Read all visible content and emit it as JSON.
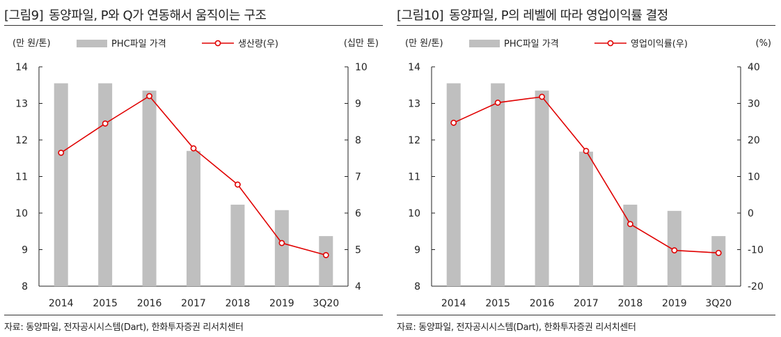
{
  "chart_data": [
    {
      "type": "bar+line",
      "figure_label": "[그림9]",
      "title": "동양파일, P와 Q가 연동해서 움직이는 구조",
      "left_unit": "(만 원/톤)",
      "right_unit": "(십만  톤)",
      "categories": [
        "2014",
        "2015",
        "2016",
        "2017",
        "2018",
        "2019",
        "3Q20"
      ],
      "series": [
        {
          "name": "PHC파일  가격",
          "kind": "bar",
          "axis": "left",
          "color": "#bfbfbf",
          "values": [
            13.55,
            13.55,
            13.35,
            11.7,
            10.23,
            10.08,
            9.37
          ]
        },
        {
          "name": "생산량(우)",
          "kind": "line",
          "axis": "right",
          "color": "#e00000",
          "values": [
            7.65,
            8.45,
            9.2,
            7.77,
            6.78,
            5.18,
            4.85
          ]
        }
      ],
      "left_axis": {
        "min": 8,
        "max": 14,
        "ticks": [
          "8",
          "9",
          "10",
          "11",
          "12",
          "13",
          "14"
        ]
      },
      "right_axis": {
        "min": 4,
        "max": 10,
        "ticks": [
          "4",
          "5",
          "6",
          "7",
          "8",
          "9",
          "10"
        ]
      },
      "source": "자료: 동양파일, 전자공시시스템(Dart), 한화투자증권 리서치센터"
    },
    {
      "type": "bar+line",
      "figure_label": "[그림10]",
      "title": "동양파일, P의 레벨에 따라 영업이익률 결정",
      "left_unit": "(만 원/톤)",
      "right_unit": "(%)",
      "categories": [
        "2014",
        "2015",
        "2016",
        "2017",
        "2018",
        "2019",
        "3Q20"
      ],
      "series": [
        {
          "name": "PHC파일  가격",
          "kind": "bar",
          "axis": "left",
          "color": "#bfbfbf",
          "values": [
            13.55,
            13.55,
            13.35,
            11.68,
            10.23,
            10.06,
            9.37
          ]
        },
        {
          "name": "영업이익률(우)",
          "kind": "line",
          "axis": "right",
          "color": "#e00000",
          "values": [
            24.7,
            30.2,
            31.8,
            17.0,
            -3.0,
            -10.2,
            -10.9
          ]
        }
      ],
      "left_axis": {
        "min": 8,
        "max": 14,
        "ticks": [
          "8",
          "9",
          "10",
          "11",
          "12",
          "13",
          "14"
        ]
      },
      "right_axis": {
        "min": -20,
        "max": 40,
        "ticks": [
          "-20",
          "-10",
          "0",
          "10",
          "20",
          "30",
          "40"
        ]
      },
      "source": "자료: 동양파일, 전자공시시스템(Dart), 한화투자증권 리서치센터"
    }
  ]
}
